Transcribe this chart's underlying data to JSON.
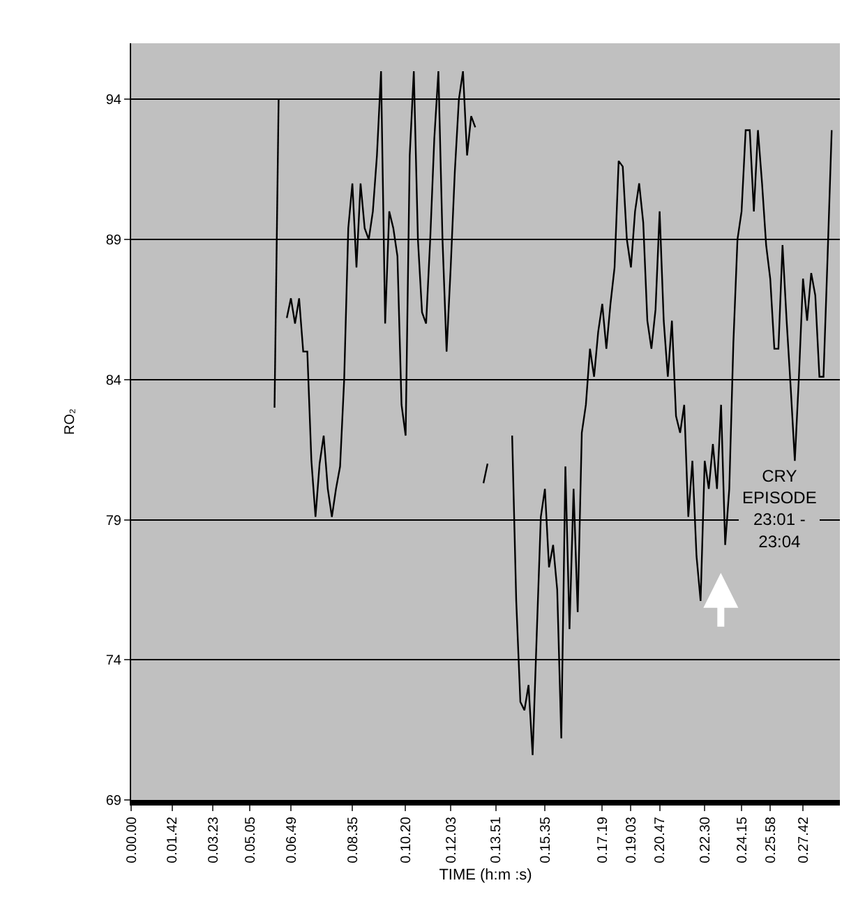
{
  "chart_data": {
    "type": "line",
    "xlabel": "TIME (h:m :s)",
    "ylabel": "RO₂",
    "categories": [
      "0.00.00",
      null,
      null,
      null,
      null,
      null,
      null,
      null,
      null,
      null,
      "0.01.42",
      null,
      null,
      null,
      null,
      null,
      null,
      null,
      null,
      null,
      "0.03.23",
      null,
      null,
      null,
      null,
      null,
      null,
      null,
      null,
      "0.05.05",
      null,
      null,
      null,
      null,
      null,
      null,
      null,
      null,
      null,
      "0.06.49",
      null,
      null,
      null,
      null,
      null,
      null,
      null,
      null,
      null,
      null,
      null,
      null,
      null,
      null,
      "0.08.35",
      null,
      null,
      null,
      null,
      null,
      null,
      null,
      null,
      null,
      null,
      null,
      null,
      "0.10.20",
      null,
      null,
      null,
      null,
      null,
      null,
      null,
      null,
      null,
      null,
      "0.12.03",
      null,
      null,
      null,
      null,
      null,
      null,
      null,
      null,
      null,
      null,
      "0.13.51",
      null,
      null,
      null,
      null,
      null,
      null,
      null,
      null,
      null,
      null,
      null,
      "0.15.35",
      null,
      null,
      null,
      null,
      null,
      null,
      null,
      null,
      null,
      null,
      null,
      null,
      null,
      "0.17.19",
      null,
      null,
      null,
      null,
      null,
      null,
      "0.19.03",
      null,
      null,
      null,
      null,
      null,
      null,
      "0.20.47",
      null,
      null,
      null,
      null,
      null,
      null,
      null,
      null,
      null,
      null,
      "0.22.30",
      null,
      null,
      null,
      null,
      null,
      null,
      null,
      null,
      "0.24.15",
      null,
      null,
      null,
      null,
      null,
      null,
      "0.25.58",
      null,
      null,
      null,
      null,
      null,
      null,
      null,
      "0.27.42",
      null,
      null,
      null,
      null,
      null,
      null,
      null,
      null,
      null
    ],
    "series": [
      {
        "color": "#000000",
        "values": [
          null,
          null,
          null,
          null,
          null,
          null,
          null,
          null,
          null,
          null,
          null,
          null,
          null,
          null,
          null,
          null,
          null,
          null,
          null,
          null,
          null,
          null,
          null,
          null,
          null,
          null,
          null,
          null,
          null,
          null,
          null,
          null,
          null,
          null,
          null,
          83.0,
          94.0,
          null,
          86.2,
          86.9,
          86.0,
          86.9,
          85.0,
          85.0,
          81.1,
          79.1,
          81.0,
          82.0,
          80.1,
          79.1,
          80.1,
          80.9,
          84.0,
          89.4,
          91.0,
          88.0,
          91.0,
          89.4,
          89.0,
          90.0,
          92.0,
          95.0,
          86.0,
          90.0,
          89.4,
          88.4,
          83.1,
          82.0,
          92.0,
          95.0,
          89.0,
          86.4,
          86.0,
          89.0,
          92.6,
          95.0,
          89.0,
          85.0,
          88.0,
          91.4,
          94.0,
          95.0,
          92.0,
          93.4,
          93.0,
          null,
          80.3,
          81.0,
          null,
          null,
          null,
          null,
          null,
          82.0,
          76.1,
          72.5,
          72.2,
          73.1,
          70.6,
          74.9,
          79.1,
          80.1,
          77.3,
          78.1,
          76.5,
          71.2,
          80.9,
          75.1,
          80.1,
          75.7,
          82.1,
          83.1,
          85.1,
          84.1,
          85.7,
          86.7,
          85.1,
          86.7,
          88.0,
          91.8,
          91.6,
          89.0,
          88.0,
          90.0,
          91.0,
          89.6,
          86.1,
          85.1,
          86.5,
          90.0,
          86.1,
          84.1,
          86.1,
          82.7,
          82.1,
          83.1,
          79.1,
          81.1,
          77.7,
          76.1,
          81.1,
          80.1,
          81.7,
          80.1,
          83.1,
          78.1,
          80.1,
          85.3,
          89.0,
          90.0,
          92.9,
          92.9,
          90.0,
          92.9,
          91.0,
          88.8,
          87.6,
          85.1,
          85.1,
          88.8,
          86.1,
          83.7,
          81.1,
          84.1,
          87.6,
          86.1,
          87.8,
          87.0,
          84.1,
          84.1,
          88.4,
          92.9,
          null,
          null
        ]
      }
    ],
    "ylim": [
      69,
      96
    ],
    "yticks": [
      69,
      74,
      79,
      84,
      89,
      94
    ],
    "grid": "y",
    "line_style": "solid",
    "annotations": [
      "CRY\nEPISODE\n23:01 -\n23:04"
    ]
  }
}
